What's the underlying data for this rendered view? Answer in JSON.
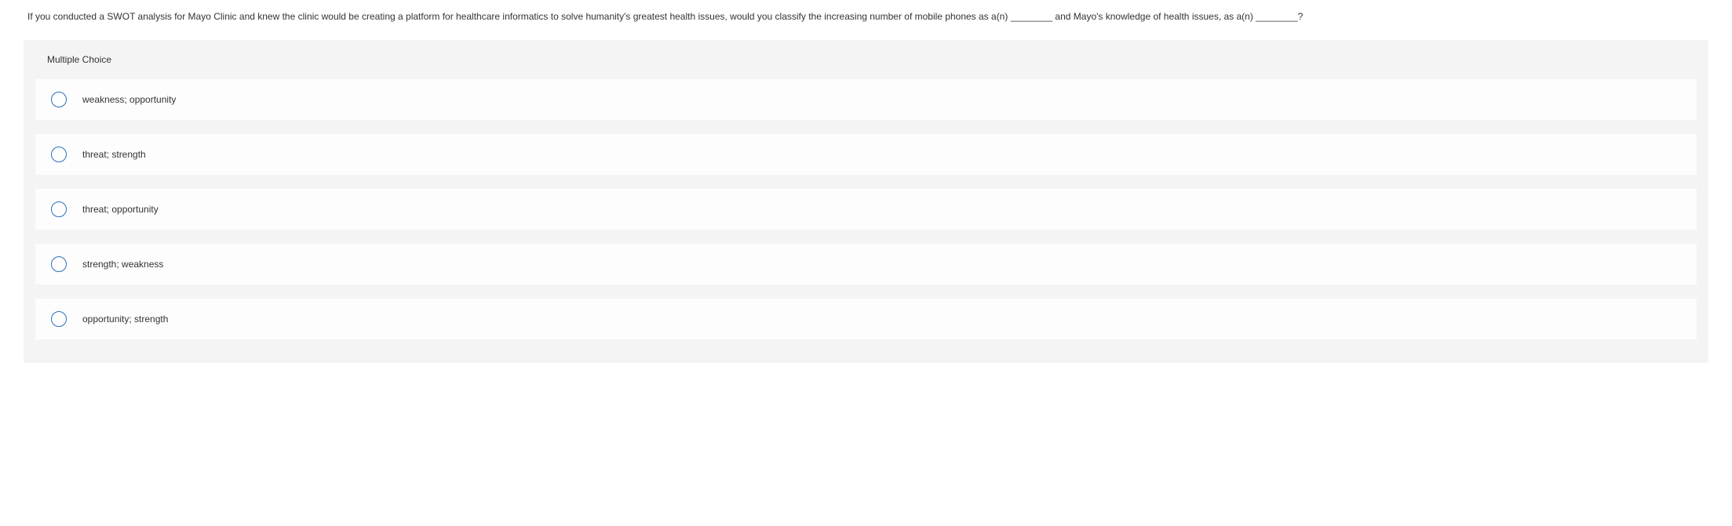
{
  "question": {
    "text": "If you conducted a SWOT analysis for Mayo Clinic and knew the clinic would be creating a platform for healthcare informatics to solve humanity's greatest health issues, would you classify the increasing number of mobile phones as a(n) ________ and Mayo's knowledge of health issues, as a(n) ________?"
  },
  "section_header": "Multiple Choice",
  "choices": [
    {
      "label": "weakness; opportunity"
    },
    {
      "label": "threat; strength"
    },
    {
      "label": "threat; opportunity"
    },
    {
      "label": "strength; weakness"
    },
    {
      "label": "opportunity; strength"
    }
  ],
  "colors": {
    "page_background": "#ffffff",
    "section_background": "#f4f4f4",
    "choice_background": "#fdfdfd",
    "text_color": "#333333",
    "radio_border": "#2a6ebb"
  }
}
